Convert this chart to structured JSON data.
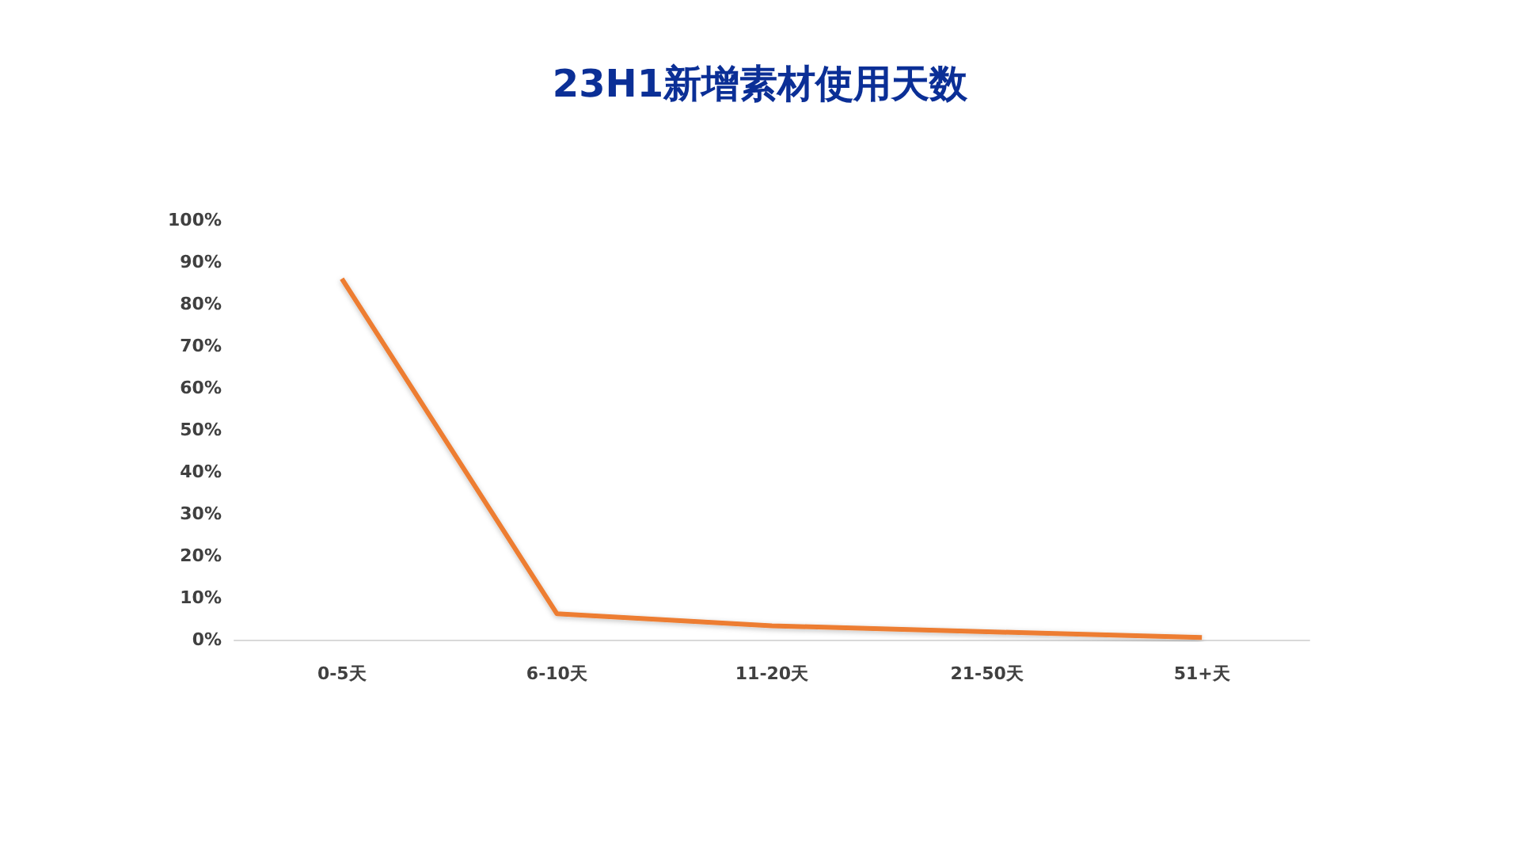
{
  "chart_data": {
    "type": "line",
    "title": "23H1新增素材使用天数",
    "categories": [
      "0-5天",
      "6-10天",
      "11-20天",
      "21-50天",
      "51+天"
    ],
    "series": [
      {
        "color": "#ed7d31",
        "values": [
          86,
          6.2,
          3.3,
          1.9,
          0.5
        ]
      }
    ],
    "ylim": [
      0,
      100
    ],
    "yticks": [
      {
        "value": 0,
        "label": "0%"
      },
      {
        "value": 10,
        "label": "10%"
      },
      {
        "value": 20,
        "label": "20%"
      },
      {
        "value": 30,
        "label": "30%"
      },
      {
        "value": 40,
        "label": "40%"
      },
      {
        "value": 50,
        "label": "50%"
      },
      {
        "value": 60,
        "label": "60%"
      },
      {
        "value": 70,
        "label": "70%"
      },
      {
        "value": 80,
        "label": "80%"
      },
      {
        "value": 90,
        "label": "90%"
      },
      {
        "value": 100,
        "label": "100%"
      }
    ],
    "grid": false,
    "marker": "none",
    "line_style": "solid"
  }
}
